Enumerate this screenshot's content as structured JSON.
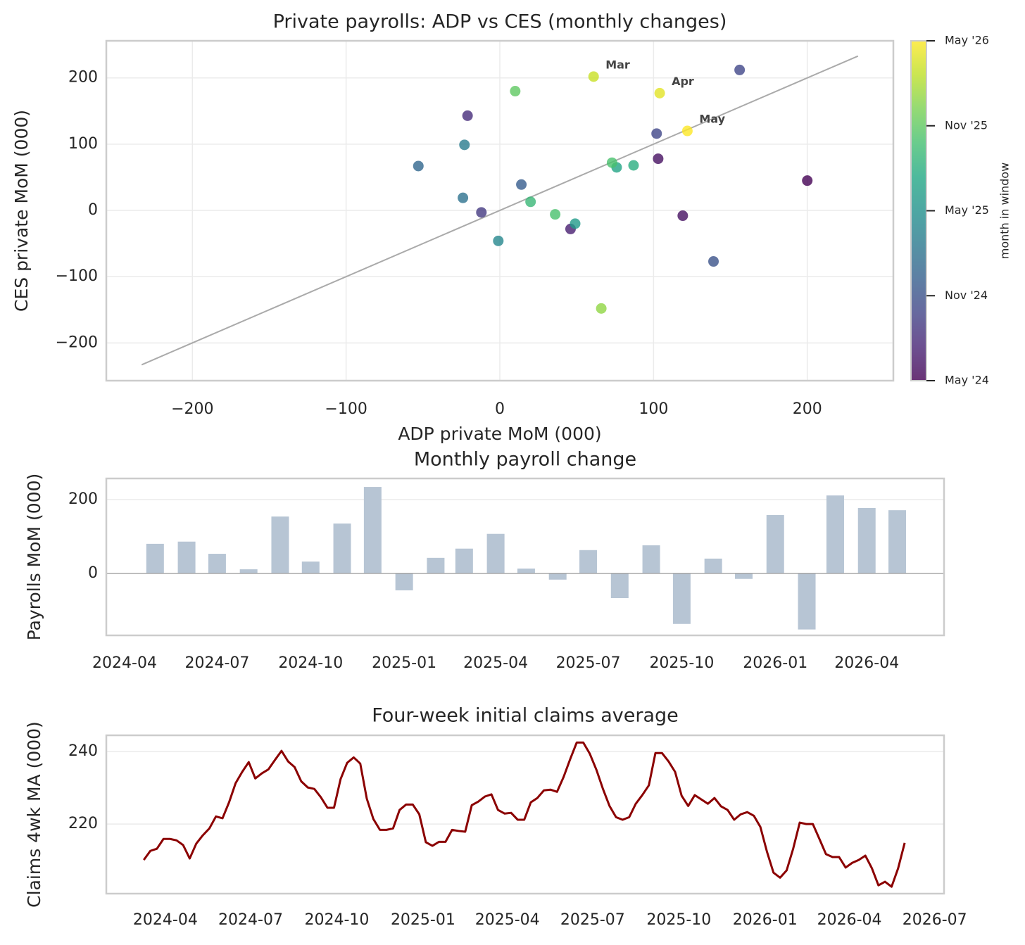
{
  "chart_data": [
    {
      "type": "scatter",
      "title": "Private payrolls: ADP vs CES (monthly changes)",
      "x_label": "ADP private MoM (000)",
      "y_label": "CES private MoM (000)",
      "x": [
        200,
        103,
        119,
        46,
        -21,
        -12,
        102,
        156,
        139,
        14,
        -53,
        -24,
        -23,
        -1,
        49,
        76,
        87,
        20,
        73,
        36,
        10,
        66,
        61,
        104,
        122
      ],
      "values": [
        45,
        78,
        -8,
        -28,
        143,
        -3,
        116,
        212,
        -77,
        39,
        67,
        19,
        99,
        -46,
        -20,
        65,
        68,
        13,
        72,
        -6,
        180,
        -148,
        202,
        177,
        120
      ],
      "c": [
        0,
        1,
        1,
        2,
        3,
        4,
        5,
        5,
        6,
        7,
        8,
        9,
        10,
        11,
        13,
        14,
        15,
        16,
        17,
        17,
        18,
        20,
        22,
        23,
        24
      ],
      "point_labels": [
        null,
        null,
        null,
        null,
        null,
        null,
        null,
        null,
        null,
        null,
        null,
        null,
        null,
        null,
        null,
        null,
        null,
        null,
        null,
        null,
        null,
        null,
        "Mar",
        "Apr",
        "May"
      ],
      "diagonal": {
        "from": -233,
        "to": 233,
        "color": "#aaaaaa"
      },
      "xlim": [
        -256,
        256
      ],
      "ylim": [
        -257,
        256
      ],
      "xticks": [
        {
          "value": -200,
          "label": "−200"
        },
        {
          "value": -100,
          "label": "−100"
        },
        0,
        100,
        200
      ],
      "yticks": [
        {
          "value": -200,
          "label": "−200"
        },
        {
          "value": -100,
          "label": "−100"
        },
        0,
        100,
        200
      ],
      "grid": true,
      "colormap": [
        "#440154",
        "#482475",
        "#414487",
        "#355f8d",
        "#2a788e",
        "#21918c",
        "#22a884",
        "#44bf70",
        "#7ad151",
        "#bddf26",
        "#fde725"
      ],
      "colorbar_label": "month in window",
      "clim": [
        0,
        24
      ],
      "cticks": [
        {
          "value": 0,
          "label": "May '24"
        },
        {
          "value": 6,
          "label": "Nov '24"
        },
        {
          "value": 12,
          "label": "May '25"
        },
        {
          "value": 18,
          "label": "Nov '25"
        },
        {
          "value": 24,
          "label": "May '26"
        }
      ]
    },
    {
      "type": "bar",
      "title": "Monthly payroll change",
      "y_label": "Payrolls MoM (000)",
      "x": [
        "2024-05",
        "2024-06",
        "2024-07",
        "2024-08",
        "2024-09",
        "2024-10",
        "2024-11",
        "2024-12",
        "2025-01",
        "2025-02",
        "2025-03",
        "2025-04",
        "2025-05",
        "2025-06",
        "2025-07",
        "2025-08",
        "2025-09",
        "2025-10",
        "2025-11",
        "2025-12",
        "2026-01",
        "2026-02",
        "2026-03",
        "2026-04",
        "2026-05"
      ],
      "values": [
        80,
        86,
        53,
        11,
        154,
        32,
        135,
        234,
        -46,
        42,
        67,
        107,
        13,
        -17,
        63,
        -67,
        76,
        -137,
        40,
        -15,
        158,
        -152,
        211,
        177,
        171
      ],
      "color": "#b7c5d4",
      "xlim": [
        "2024-03-14",
        "2026-06-16"
      ],
      "ylim": [
        -168,
        257
      ],
      "xticks": [
        "2024-04",
        "2024-07",
        "2024-10",
        "2025-01",
        "2025-04",
        "2025-07",
        "2025-10",
        "2026-01",
        "2026-04"
      ],
      "yticks": [
        0,
        200
      ],
      "grid": true
    },
    {
      "type": "line",
      "title": "Four-week initial claims average",
      "y_label": "Claims 4wk MA (000)",
      "x": [
        "2024-03-09",
        "2024-03-16",
        "2024-03-23",
        "2024-03-30",
        "2024-04-06",
        "2024-04-13",
        "2024-04-20",
        "2024-04-27",
        "2024-05-04",
        "2024-05-11",
        "2024-05-18",
        "2024-05-25",
        "2024-06-01",
        "2024-06-08",
        "2024-06-15",
        "2024-06-22",
        "2024-06-29",
        "2024-07-06",
        "2024-07-13",
        "2024-07-20",
        "2024-07-27",
        "2024-08-03",
        "2024-08-10",
        "2024-08-17",
        "2024-08-24",
        "2024-08-31",
        "2024-09-07",
        "2024-09-14",
        "2024-09-21",
        "2024-09-28",
        "2024-10-05",
        "2024-10-12",
        "2024-10-19",
        "2024-10-26",
        "2024-11-02",
        "2024-11-09",
        "2024-11-16",
        "2024-11-23",
        "2024-11-30",
        "2024-12-07",
        "2024-12-14",
        "2024-12-21",
        "2024-12-28",
        "2025-01-04",
        "2025-01-11",
        "2025-01-18",
        "2025-01-25",
        "2025-02-01",
        "2025-02-08",
        "2025-02-15",
        "2025-02-22",
        "2025-03-01",
        "2025-03-08",
        "2025-03-15",
        "2025-03-22",
        "2025-03-29",
        "2025-04-05",
        "2025-04-12",
        "2025-04-19",
        "2025-04-26",
        "2025-05-03",
        "2025-05-10",
        "2025-05-17",
        "2025-05-24",
        "2025-05-31",
        "2025-06-07",
        "2025-06-14",
        "2025-06-21",
        "2025-06-28",
        "2025-07-05",
        "2025-07-12",
        "2025-07-19",
        "2025-07-26",
        "2025-08-02",
        "2025-08-09",
        "2025-08-16",
        "2025-08-23",
        "2025-08-30",
        "2025-09-06",
        "2025-09-13",
        "2025-09-20",
        "2025-09-27",
        "2025-10-04",
        "2025-10-11",
        "2025-10-18",
        "2025-10-25",
        "2025-11-01",
        "2025-11-08",
        "2025-11-15",
        "2025-11-22",
        "2025-11-29",
        "2025-12-06",
        "2025-12-13",
        "2025-12-20",
        "2025-12-27",
        "2026-01-03",
        "2026-01-10",
        "2026-01-17",
        "2026-01-24",
        "2026-01-31",
        "2026-02-07",
        "2026-02-14",
        "2026-02-21",
        "2026-02-28",
        "2026-03-07",
        "2026-03-14",
        "2026-03-21",
        "2026-03-28",
        "2026-04-04",
        "2026-04-11",
        "2026-04-18",
        "2026-04-25",
        "2026-05-02",
        "2026-05-09",
        "2026-05-16",
        "2026-05-23",
        "2026-05-30"
      ],
      "values": [
        210.1,
        212.6,
        213.2,
        215.9,
        215.9,
        215.5,
        214.2,
        210.5,
        214.6,
        216.9,
        218.8,
        222.1,
        221.6,
        226,
        231.3,
        234.4,
        237.1,
        232.6,
        234,
        235.1,
        237.7,
        240.2,
        237.3,
        235.7,
        231.8,
        230.1,
        229.7,
        227.4,
        224.5,
        224.5,
        232.4,
        236.9,
        238.4,
        236.7,
        227,
        221.4,
        218.4,
        218.4,
        218.8,
        223.9,
        225.4,
        225.4,
        222.7,
        215,
        214,
        215.1,
        215.1,
        218.4,
        218.1,
        217.9,
        225.2,
        226.2,
        227.6,
        228.2,
        223.9,
        222.9,
        223.1,
        221.2,
        221.2,
        226,
        227.2,
        229.3,
        229.5,
        228.9,
        233,
        237.9,
        242.5,
        242.5,
        239.4,
        235,
        229.7,
        225,
        221.9,
        221.2,
        221.9,
        225.6,
        228,
        230.7,
        239.6,
        239.6,
        237.3,
        234.4,
        227.8,
        225,
        228,
        226.8,
        225.6,
        227.2,
        224.9,
        223.9,
        221.2,
        222.7,
        223.3,
        222.3,
        219.2,
        212.4,
        206.6,
        205.2,
        207.2,
        213.2,
        220.4,
        220,
        220,
        215.9,
        211.7,
        210.9,
        210.9,
        208,
        209.3,
        210.1,
        211.3,
        207.8,
        203.1,
        204.1,
        202.7,
        207.8,
        214.8
      ],
      "color": "#8b0000",
      "xlim": [
        "2024-01-29",
        "2026-07-11"
      ],
      "ylim": [
        200.8,
        244.5
      ],
      "xticks": [
        "2024-04",
        "2024-07",
        "2024-10",
        "2025-01",
        "2025-04",
        "2025-07",
        "2025-10",
        "2026-01",
        "2026-04",
        "2026-07"
      ],
      "yticks": [
        220,
        240
      ],
      "grid": true
    }
  ]
}
